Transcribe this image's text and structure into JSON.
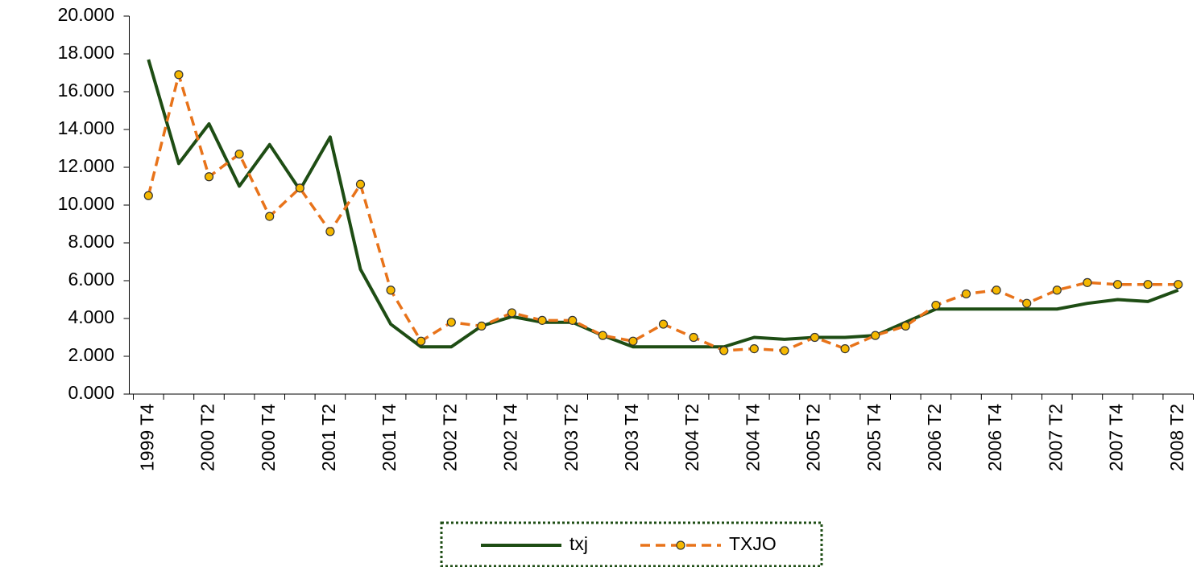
{
  "chart_data": {
    "type": "line",
    "categories": [
      "1999 T4",
      null,
      "2000 T2",
      null,
      "2000 T4",
      null,
      "2001 T2",
      null,
      "2001 T4",
      null,
      "2002 T2",
      null,
      "2002 T4",
      null,
      "2003 T2",
      null,
      "2003 T4",
      null,
      "2004 T2",
      null,
      "2004 T4",
      null,
      "2005 T2",
      null,
      "2005 T4",
      null,
      "2006 T2",
      null,
      "2006 T4",
      null,
      "2007 T2",
      null,
      "2007 T4",
      null,
      "2008 T2"
    ],
    "series": [
      {
        "name": "txj",
        "color": "#1e4d14",
        "dashed": false,
        "markers": false,
        "values": [
          17.7,
          12.2,
          14.3,
          11.0,
          13.2,
          10.8,
          13.6,
          6.6,
          3.7,
          2.5,
          2.5,
          3.6,
          4.1,
          3.8,
          3.8,
          3.1,
          2.5,
          2.5,
          2.5,
          2.5,
          3.0,
          2.9,
          3.0,
          3.0,
          3.1,
          3.8,
          4.5,
          4.5,
          4.5,
          4.5,
          4.5,
          4.8,
          5.0,
          4.9,
          5.5
        ]
      },
      {
        "name": "TXJO",
        "color": "#e8731a",
        "dashed": true,
        "markers": true,
        "values": [
          10.5,
          16.9,
          11.5,
          12.7,
          9.4,
          10.9,
          8.6,
          11.1,
          5.5,
          2.8,
          3.8,
          3.6,
          4.3,
          3.9,
          3.9,
          3.1,
          2.8,
          3.7,
          3.0,
          2.3,
          2.4,
          2.3,
          3.0,
          2.4,
          3.1,
          3.6,
          4.7,
          5.3,
          5.5,
          4.8,
          5.5,
          5.9,
          5.8,
          5.8,
          5.8
        ]
      }
    ],
    "ylim": [
      0,
      20
    ],
    "yticks": [
      {
        "value": 0,
        "label": "0.000"
      },
      {
        "value": 2,
        "label": "2.000"
      },
      {
        "value": 4,
        "label": "4.000"
      },
      {
        "value": 6,
        "label": "6.000"
      },
      {
        "value": 8,
        "label": "8.000"
      },
      {
        "value": 10,
        "label": "10.000"
      },
      {
        "value": 12,
        "label": "12.000"
      },
      {
        "value": 14,
        "label": "14.000"
      },
      {
        "value": 16,
        "label": "16.000"
      },
      {
        "value": 18,
        "label": "18.000"
      },
      {
        "value": 20,
        "label": "20.000"
      }
    ],
    "grid": false,
    "legend": "bottom"
  }
}
